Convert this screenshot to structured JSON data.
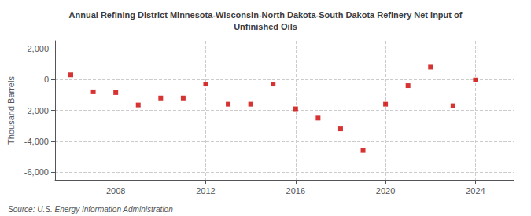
{
  "chart_data": {
    "type": "scatter",
    "title": "Annual Refining District Minnesota-Wisconsin-North Dakota-South Dakota Refinery Net Input of\nUnfinished Oils",
    "ylabel": "Thousand Barrels",
    "source": "Source: U.S. Energy Information Administration",
    "x": [
      2006,
      2007,
      2008,
      2009,
      2010,
      2011,
      2012,
      2013,
      2014,
      2015,
      2016,
      2017,
      2018,
      2019,
      2020,
      2021,
      2022,
      2023,
      2024
    ],
    "values": [
      300,
      -800,
      -850,
      -1650,
      -1200,
      -1200,
      -300,
      -1600,
      -1600,
      -300,
      -1900,
      -2500,
      -3200,
      -4600,
      -1600,
      -400,
      800,
      -1700,
      -30
    ],
    "color": "#cc0000",
    "marker": "square",
    "xlim": [
      2005.3,
      2025.7
    ],
    "xticks": [
      2008,
      2012,
      2016,
      2020,
      2024
    ],
    "ylim": [
      -6500,
      2500
    ],
    "yticks": [
      {
        "value": -6000,
        "label": "-6,000"
      },
      {
        "value": -4000,
        "label": "-4,000"
      },
      {
        "value": -2000,
        "label": "-2,000"
      },
      0,
      {
        "value": 2000,
        "label": "2,000"
      }
    ],
    "grid": true
  }
}
